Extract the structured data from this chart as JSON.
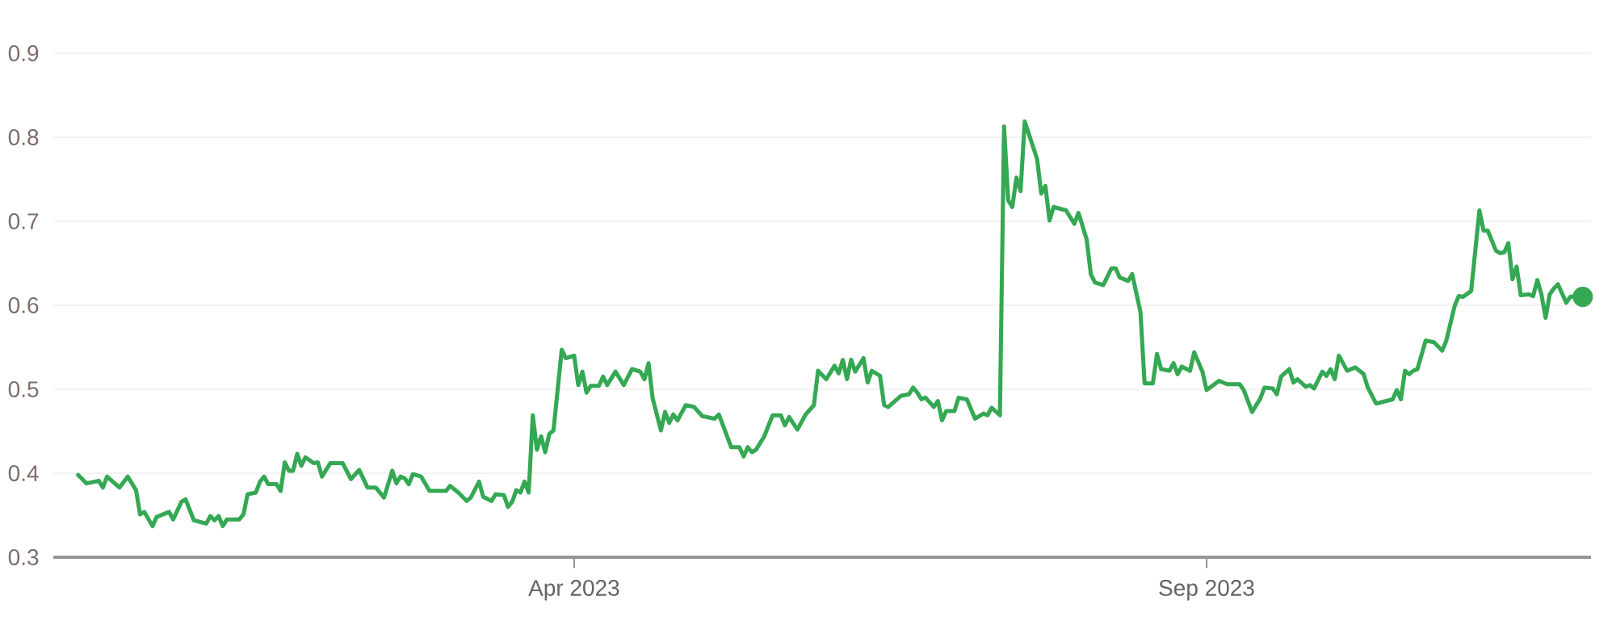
{
  "chart_data": {
    "type": "line",
    "xlim": [
      "2022-11-26",
      "2023-12-03"
    ],
    "ylim": [
      0.3,
      0.9
    ],
    "xticks": [
      {
        "value": "2023-04-01",
        "label": "Apr 2023"
      },
      {
        "value": "2023-09-01",
        "label": "Sep 2023"
      }
    ],
    "yticks": [
      0.3,
      0.4,
      0.5,
      0.6,
      0.7,
      0.8,
      0.9
    ],
    "grid": "y",
    "marker": "none",
    "line_style": "solid",
    "series": [
      {
        "color": "#34a853",
        "x": [
          "2022-12-02",
          "2022-12-04",
          "2022-12-07",
          "2022-12-08",
          "2022-12-09",
          "2022-12-12",
          "2022-12-14",
          "2022-12-16",
          "2022-12-17",
          "2022-12-18",
          "2022-12-20",
          "2022-12-21",
          "2022-12-24",
          "2022-12-25",
          "2022-12-27",
          "2022-12-28",
          "2022-12-30",
          "2023-01-02",
          "2023-01-03",
          "2023-01-04",
          "2023-01-05",
          "2023-01-06",
          "2023-01-07",
          "2023-01-10",
          "2023-01-11",
          "2023-01-12",
          "2023-01-14",
          "2023-01-15",
          "2023-01-16",
          "2023-01-17",
          "2023-01-19",
          "2023-01-20",
          "2023-01-21",
          "2023-01-22",
          "2023-01-23",
          "2023-01-24",
          "2023-01-25",
          "2023-01-26",
          "2023-01-28",
          "2023-01-29",
          "2023-01-30",
          "2023-02-01",
          "2023-02-04",
          "2023-02-06",
          "2023-02-08",
          "2023-02-10",
          "2023-02-12",
          "2023-02-14",
          "2023-02-16",
          "2023-02-17",
          "2023-02-18",
          "2023-02-19",
          "2023-02-20",
          "2023-02-21",
          "2023-02-23",
          "2023-02-25",
          "2023-03-01",
          "2023-03-02",
          "2023-03-04",
          "2023-03-06",
          "2023-03-07",
          "2023-03-09",
          "2023-03-10",
          "2023-03-12",
          "2023-03-13",
          "2023-03-15",
          "2023-03-16",
          "2023-03-17",
          "2023-03-18",
          "2023-03-19",
          "2023-03-20",
          "2023-03-21",
          "2023-03-22",
          "2023-03-23",
          "2023-03-24",
          "2023-03-25",
          "2023-03-26",
          "2023-03-27",
          "2023-03-29",
          "2023-03-30",
          "2023-04-01",
          "2023-04-02",
          "2023-04-03",
          "2023-04-04",
          "2023-04-05",
          "2023-04-07",
          "2023-04-08",
          "2023-04-09",
          "2023-04-11",
          "2023-04-13",
          "2023-04-15",
          "2023-04-17",
          "2023-04-18",
          "2023-04-19",
          "2023-04-20",
          "2023-04-22",
          "2023-04-23",
          "2023-04-24",
          "2023-04-25",
          "2023-04-26",
          "2023-04-28",
          "2023-04-30",
          "2023-05-02",
          "2023-05-05",
          "2023-05-06",
          "2023-05-07",
          "2023-05-09",
          "2023-05-11",
          "2023-05-12",
          "2023-05-13",
          "2023-05-14",
          "2023-05-15",
          "2023-05-17",
          "2023-05-19",
          "2023-05-21",
          "2023-05-22",
          "2023-05-23",
          "2023-05-25",
          "2023-05-27",
          "2023-05-29",
          "2023-05-30",
          "2023-06-01",
          "2023-06-03",
          "2023-06-04",
          "2023-06-05",
          "2023-06-06",
          "2023-06-07",
          "2023-06-08",
          "2023-06-10",
          "2023-06-11",
          "2023-06-12",
          "2023-06-14",
          "2023-06-15",
          "2023-06-16",
          "2023-06-19",
          "2023-06-21",
          "2023-06-22",
          "2023-06-23",
          "2023-06-24",
          "2023-06-25",
          "2023-06-27",
          "2023-06-28",
          "2023-06-29",
          "2023-06-30",
          "2023-07-02",
          "2023-07-03",
          "2023-07-05",
          "2023-07-07",
          "2023-07-09",
          "2023-07-10",
          "2023-07-11",
          "2023-07-13",
          "2023-07-14",
          "2023-07-15",
          "2023-07-16",
          "2023-07-17",
          "2023-07-18",
          "2023-07-19",
          "2023-07-22",
          "2023-07-23",
          "2023-07-24",
          "2023-07-25",
          "2023-07-26",
          "2023-07-29",
          "2023-07-31",
          "2023-08-01",
          "2023-08-03",
          "2023-08-04",
          "2023-08-05",
          "2023-08-07",
          "2023-08-09",
          "2023-08-10",
          "2023-08-11",
          "2023-08-13",
          "2023-08-14",
          "2023-08-16",
          "2023-08-17",
          "2023-08-19",
          "2023-08-20",
          "2023-08-21",
          "2023-08-23",
          "2023-08-24",
          "2023-08-25",
          "2023-08-26",
          "2023-08-28",
          "2023-08-29",
          "2023-08-31",
          "2023-09-01",
          "2023-09-04",
          "2023-09-06",
          "2023-09-09",
          "2023-09-10",
          "2023-09-12",
          "2023-09-13",
          "2023-09-14",
          "2023-09-15",
          "2023-09-17",
          "2023-09-18",
          "2023-09-19",
          "2023-09-21",
          "2023-09-22",
          "2023-09-23",
          "2023-09-25",
          "2023-09-26",
          "2023-09-27",
          "2023-09-29",
          "2023-09-30",
          "2023-10-01",
          "2023-10-02",
          "2023-10-03",
          "2023-10-05",
          "2023-10-07",
          "2023-10-09",
          "2023-10-10",
          "2023-10-12",
          "2023-10-16",
          "2023-10-17",
          "2023-10-18",
          "2023-10-19",
          "2023-10-20",
          "2023-10-21",
          "2023-10-22",
          "2023-10-24",
          "2023-10-26",
          "2023-10-28",
          "2023-10-29",
          "2023-10-31",
          "2023-11-01",
          "2023-11-02",
          "2023-11-04",
          "2023-11-06",
          "2023-11-07",
          "2023-11-08",
          "2023-11-10",
          "2023-11-11",
          "2023-11-12",
          "2023-11-13",
          "2023-11-14",
          "2023-11-15",
          "2023-11-16",
          "2023-11-18",
          "2023-11-19",
          "2023-11-20",
          "2023-11-21",
          "2023-11-22",
          "2023-11-23",
          "2023-11-24",
          "2023-11-25",
          "2023-11-27",
          "2023-11-28",
          "2023-11-30",
          "2023-12-01"
        ],
        "values": [
          0.398,
          0.388,
          0.391,
          0.383,
          0.396,
          0.383,
          0.396,
          0.38,
          0.351,
          0.354,
          0.337,
          0.348,
          0.354,
          0.345,
          0.366,
          0.369,
          0.344,
          0.34,
          0.349,
          0.344,
          0.349,
          0.337,
          0.345,
          0.345,
          0.351,
          0.375,
          0.377,
          0.39,
          0.396,
          0.387,
          0.387,
          0.379,
          0.413,
          0.403,
          0.403,
          0.423,
          0.409,
          0.419,
          0.412,
          0.413,
          0.396,
          0.412,
          0.412,
          0.393,
          0.404,
          0.383,
          0.383,
          0.371,
          0.403,
          0.388,
          0.396,
          0.394,
          0.387,
          0.399,
          0.396,
          0.379,
          0.379,
          0.385,
          0.377,
          0.367,
          0.371,
          0.39,
          0.372,
          0.367,
          0.375,
          0.374,
          0.36,
          0.366,
          0.38,
          0.377,
          0.39,
          0.377,
          0.469,
          0.428,
          0.444,
          0.425,
          0.447,
          0.451,
          0.547,
          0.537,
          0.54,
          0.505,
          0.521,
          0.496,
          0.504,
          0.504,
          0.515,
          0.505,
          0.521,
          0.505,
          0.524,
          0.521,
          0.512,
          0.531,
          0.489,
          0.451,
          0.473,
          0.46,
          0.47,
          0.463,
          0.481,
          0.479,
          0.468,
          0.465,
          0.47,
          0.457,
          0.431,
          0.431,
          0.42,
          0.431,
          0.425,
          0.428,
          0.444,
          0.469,
          0.469,
          0.457,
          0.467,
          0.452,
          0.47,
          0.481,
          0.522,
          0.512,
          0.528,
          0.519,
          0.535,
          0.512,
          0.535,
          0.521,
          0.537,
          0.508,
          0.522,
          0.516,
          0.481,
          0.479,
          0.492,
          0.494,
          0.502,
          0.496,
          0.488,
          0.49,
          0.479,
          0.486,
          0.463,
          0.474,
          0.474,
          0.49,
          0.488,
          0.465,
          0.471,
          0.469,
          0.478,
          0.469,
          0.813,
          0.725,
          0.717,
          0.752,
          0.736,
          0.819,
          0.774,
          0.733,
          0.742,
          0.701,
          0.717,
          0.713,
          0.697,
          0.71,
          0.678,
          0.637,
          0.627,
          0.624,
          0.644,
          0.644,
          0.633,
          0.629,
          0.637,
          0.592,
          0.507,
          0.507,
          0.542,
          0.524,
          0.522,
          0.531,
          0.518,
          0.527,
          0.522,
          0.544,
          0.521,
          0.499,
          0.51,
          0.506,
          0.506,
          0.499,
          0.473,
          0.481,
          0.489,
          0.502,
          0.501,
          0.494,
          0.515,
          0.524,
          0.508,
          0.512,
          0.503,
          0.505,
          0.501,
          0.521,
          0.516,
          0.524,
          0.512,
          0.54,
          0.522,
          0.526,
          0.518,
          0.502,
          0.483,
          0.488,
          0.499,
          0.488,
          0.522,
          0.518,
          0.522,
          0.524,
          0.558,
          0.556,
          0.546,
          0.558,
          0.599,
          0.611,
          0.61,
          0.617,
          0.713,
          0.689,
          0.689,
          0.665,
          0.662,
          0.663,
          0.674,
          0.631,
          0.646,
          0.612,
          0.613,
          0.611,
          0.63,
          0.613,
          0.585,
          0.613,
          0.62,
          0.625,
          0.603,
          0.61,
          0.611,
          0.61
        ]
      },
      {
        "type": "scatter",
        "marker": "circle",
        "color": "#34a853",
        "x": [
          "2023-12-01"
        ],
        "values": [
          0.61
        ]
      }
    ]
  }
}
